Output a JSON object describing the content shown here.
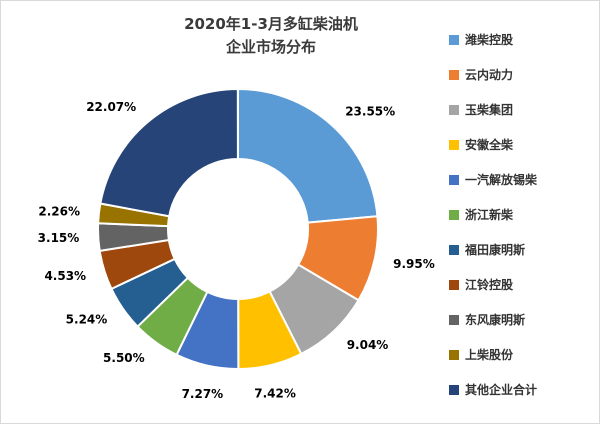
{
  "title": {
    "line1": "2020年1-3月多缸柴油机",
    "line2": "企业市场分布"
  },
  "chart_data": {
    "type": "pie",
    "subtype": "donut",
    "title": "2020年1-3月多缸柴油机企业市场分布",
    "legend_position": "right",
    "start_angle_deg": -90,
    "direction": "clockwise",
    "inner_radius_ratio": 0.5,
    "categories": [
      "潍柴控股",
      "云内动力",
      "玉柴集团",
      "安徽全柴",
      "一汽解放锡柴",
      "浙江新柴",
      "福田康明斯",
      "江铃控股",
      "东风康明斯",
      "上柴股份",
      "其他企业合计"
    ],
    "values": [
      23.55,
      9.95,
      9.04,
      7.42,
      7.27,
      5.5,
      5.24,
      4.53,
      3.15,
      2.26,
      22.07
    ],
    "labels": [
      "23.55%",
      "9.95%",
      "9.04%",
      "7.42%",
      "7.27%",
      "5.50%",
      "5.24%",
      "4.53%",
      "3.15%",
      "2.26%",
      "22.07%"
    ],
    "colors": [
      "#5B9BD5",
      "#ED7D31",
      "#A5A5A5",
      "#FFC000",
      "#4472C4",
      "#70AD47",
      "#255E91",
      "#9E480E",
      "#636363",
      "#997300",
      "#264478"
    ]
  }
}
